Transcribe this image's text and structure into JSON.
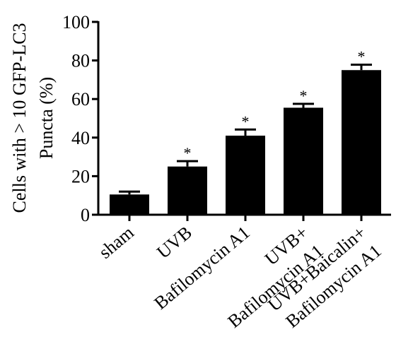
{
  "chart_data": {
    "type": "bar",
    "title": "",
    "xlabel": "",
    "ylabel_lines": [
      "Cells with > 10 GFP-LC3",
      "Puncta (%)"
    ],
    "ylim": [
      0,
      100
    ],
    "yticks": [
      0,
      20,
      40,
      60,
      80,
      100
    ],
    "categories": [
      [
        "sham"
      ],
      [
        "UVB"
      ],
      [
        "Bafilomycin A1"
      ],
      [
        "UVB+",
        "Bafilomycin A1"
      ],
      [
        "UVB+Baicalin+",
        "Bafilomycin A1"
      ]
    ],
    "values": [
      10.5,
      25,
      41,
      55.5,
      75
    ],
    "errors": [
      1.5,
      2.8,
      3.2,
      2.0,
      2.8
    ],
    "significance": [
      "",
      "*",
      "*",
      "*",
      "*"
    ],
    "bar_color": "#000000",
    "grid": false,
    "legend": "none"
  }
}
